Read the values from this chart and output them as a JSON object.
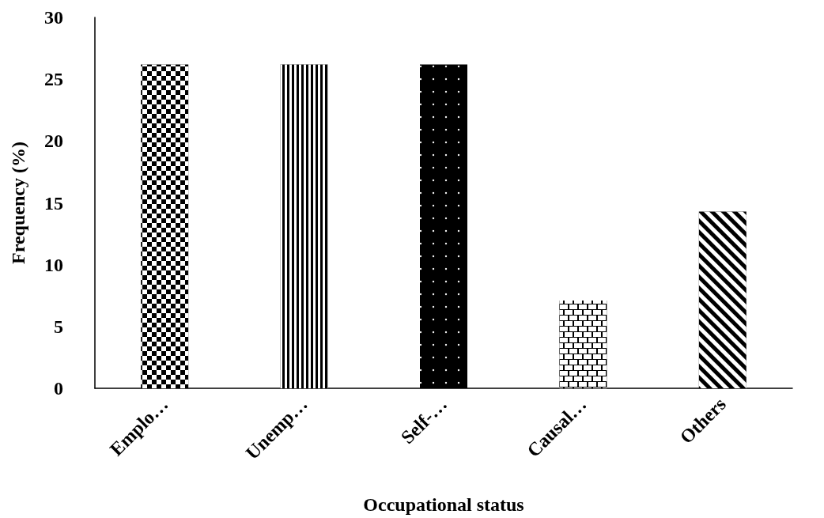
{
  "chart_data": {
    "type": "bar",
    "xlabel": "Occupational status",
    "ylabel": "Frequency (%)",
    "categories": [
      "Emplo…",
      "Unemp…",
      "Self-…",
      "Causal…",
      "Others"
    ],
    "values": [
      26.2,
      26.2,
      26.2,
      7.1,
      14.3
    ],
    "colors": [
      "#000000",
      "#000000",
      "#000000",
      "#000000",
      "#000000"
    ],
    "ylim": [
      0,
      30
    ],
    "yticks": [
      0,
      5,
      10,
      15,
      20,
      25,
      30
    ],
    "grid": false
  }
}
